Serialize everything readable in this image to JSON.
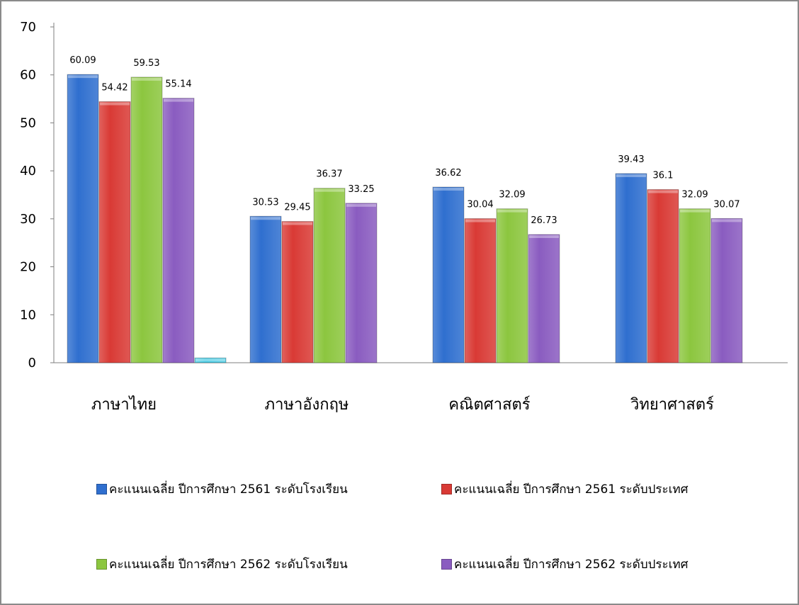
{
  "chart_data": {
    "type": "bar",
    "title": "",
    "xlabel": "",
    "ylabel": "",
    "ylim": [
      0,
      70
    ],
    "y_ticks": [
      "0",
      "10",
      "20",
      "30",
      "40",
      "50",
      "60",
      "70"
    ],
    "grid": false,
    "legend_position": "bottom",
    "categories": [
      "ภาษาไทย",
      "ภาษาอังกฤษ",
      "คณิตศาสตร์",
      "วิทยาศาสตร์"
    ],
    "series": [
      {
        "name": "คะแนนเฉลี่ย ปีการศึกษา 2561 ระดับโรงเรียน",
        "color": "#2f6fcf",
        "values": [
          60.09,
          30.53,
          36.62,
          39.43
        ],
        "labels": [
          "60.09",
          "30.53",
          "36.62",
          "39.43"
        ]
      },
      {
        "name": "คะแนนเฉลี่ย ปีการศึกษา 2561 ระดับประเทศ",
        "color": "#d93a35",
        "values": [
          54.42,
          29.45,
          30.04,
          36.1
        ],
        "labels": [
          "54.42",
          "29.45",
          "30.04",
          "36.1"
        ]
      },
      {
        "name": "คะแนนเฉลี่ย ปีการศึกษา 2562 ระดับโรงเรียน",
        "color": "#8cc63f",
        "values": [
          59.53,
          36.37,
          32.09,
          32.09
        ],
        "labels": [
          "59.53",
          "36.37",
          "32.09",
          "32.09"
        ]
      },
      {
        "name": "คะแนนเฉลี่ย ปีการศึกษา 2562 ระดับประเทศ",
        "color": "#8a5cc0",
        "values": [
          55.14,
          33.25,
          26.73,
          30.07
        ],
        "labels": [
          "55.14",
          "33.25",
          "26.73",
          "30.07"
        ]
      },
      {
        "name": "",
        "color": "#3cc6e0",
        "values": [
          1,
          0,
          0,
          0
        ],
        "labels": [
          "",
          "",
          "",
          ""
        ]
      }
    ]
  }
}
